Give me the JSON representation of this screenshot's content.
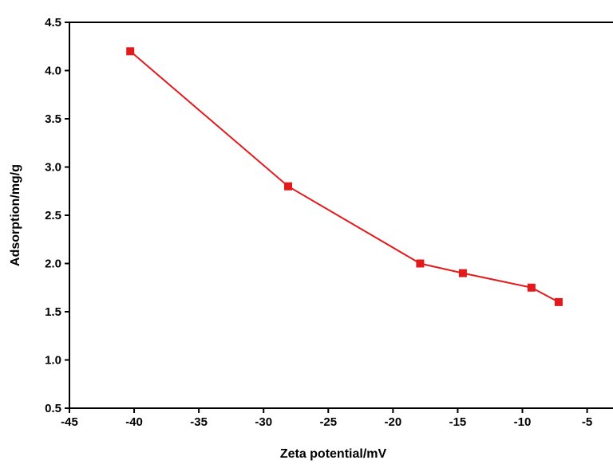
{
  "chart_data": {
    "type": "line",
    "title": "",
    "xlabel": "Zeta potential/mV",
    "ylabel": "Adsorption/mg/g",
    "xlim": [
      -45,
      -3
    ],
    "ylim": [
      0.5,
      4.5
    ],
    "x_ticks": [
      -45,
      -40,
      -35,
      -30,
      -25,
      -20,
      -15,
      -10,
      -5
    ],
    "x_tick_labels": [
      "-45",
      "-40",
      "-35",
      "-30",
      "-25",
      "-20",
      "-15",
      "-10",
      "-5"
    ],
    "y_ticks": [
      0.5,
      1.0,
      1.5,
      2.0,
      2.5,
      3.0,
      3.5,
      4.0,
      4.5
    ],
    "y_tick_labels": [
      "0.5",
      "1.0",
      "1.5",
      "2.0",
      "2.5",
      "3.0",
      "3.5",
      "4.0",
      "4.5"
    ],
    "grid": false,
    "legend": "none",
    "series": [
      {
        "color": "#e31a1c",
        "marker": "square",
        "x": [
          -40.3,
          -28.1,
          -17.9,
          -14.6,
          -9.3,
          -7.2
        ],
        "y": [
          4.2,
          2.8,
          2.0,
          1.9,
          1.75,
          1.6
        ]
      }
    ]
  }
}
